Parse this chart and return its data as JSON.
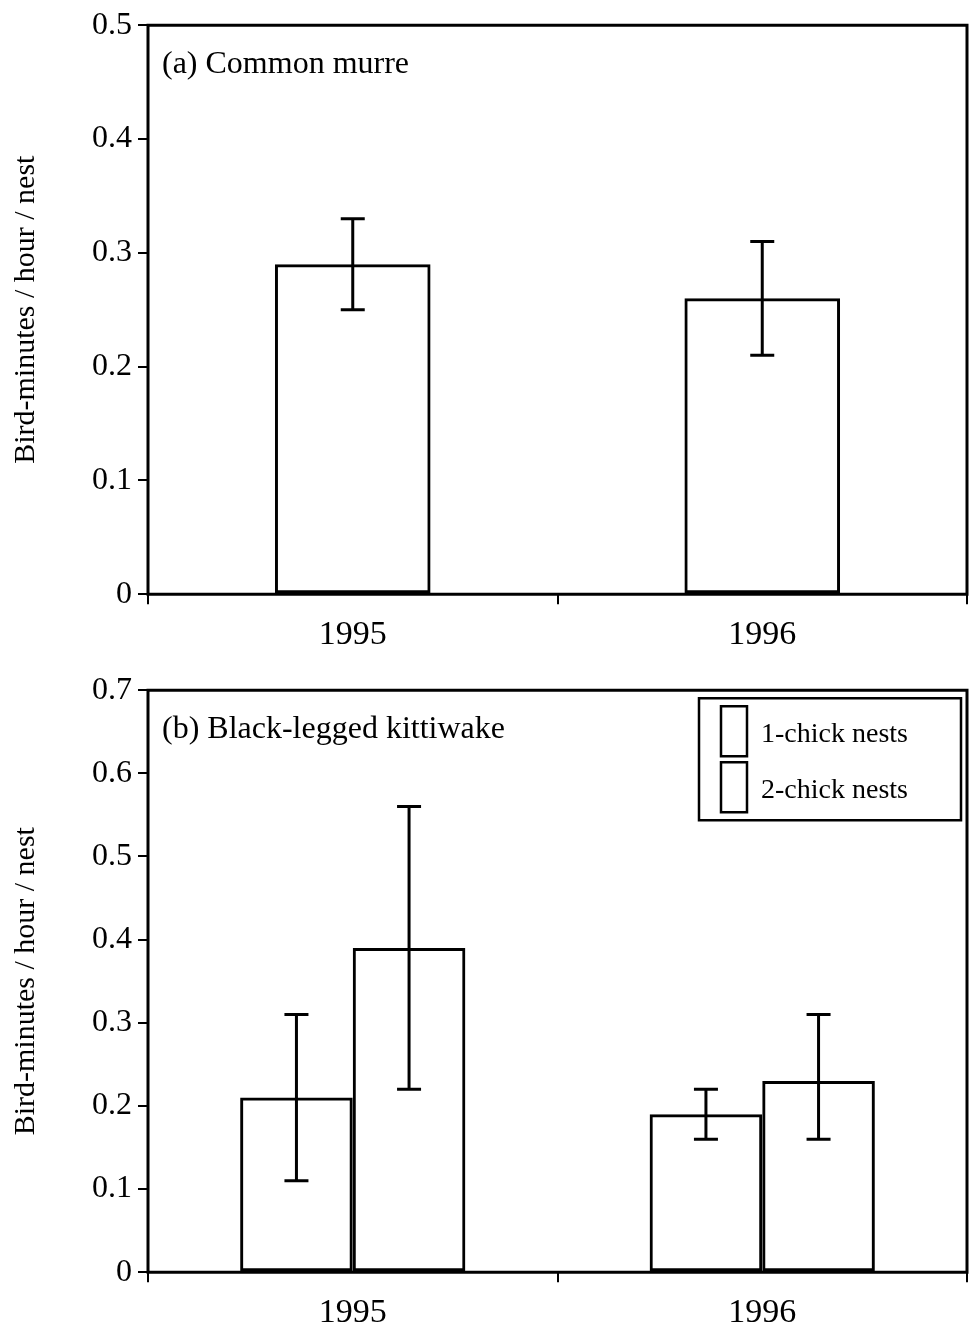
{
  "chart_data": [
    {
      "type": "bar",
      "title": "(a) Common murre",
      "ylabel": "Bird-minutes / hour / nest",
      "categories": [
        "1995",
        "1996"
      ],
      "values": [
        0.29,
        0.26
      ],
      "errors": [
        [
          0.25,
          0.33
        ],
        [
          0.21,
          0.31
        ]
      ],
      "color": "#000000",
      "ylim": [
        0,
        0.5
      ],
      "yticks": [
        0,
        0.1,
        0.2,
        0.3,
        0.4,
        0.5
      ],
      "grid": false
    },
    {
      "type": "bar",
      "title": "(b) Black-legged kittiwake",
      "ylabel": "Bird-minutes / hour / nest",
      "categories": [
        "1995",
        "1996"
      ],
      "series": [
        {
          "name": "1-chick nests",
          "color": "#000000",
          "values": [
            0.21,
            0.19
          ],
          "errors": [
            [
              0.11,
              0.31
            ],
            [
              0.16,
              0.22
            ]
          ]
        },
        {
          "name": "2-chick nests",
          "color": "#000000",
          "values": [
            0.39,
            0.23
          ],
          "errors": [
            [
              0.22,
              0.56
            ],
            [
              0.16,
              0.31
            ]
          ]
        }
      ],
      "ylim": [
        0,
        0.7
      ],
      "yticks": [
        0,
        0.1,
        0.2,
        0.3,
        0.4,
        0.5,
        0.6,
        0.7
      ],
      "grid": false,
      "legend": "top right"
    }
  ]
}
